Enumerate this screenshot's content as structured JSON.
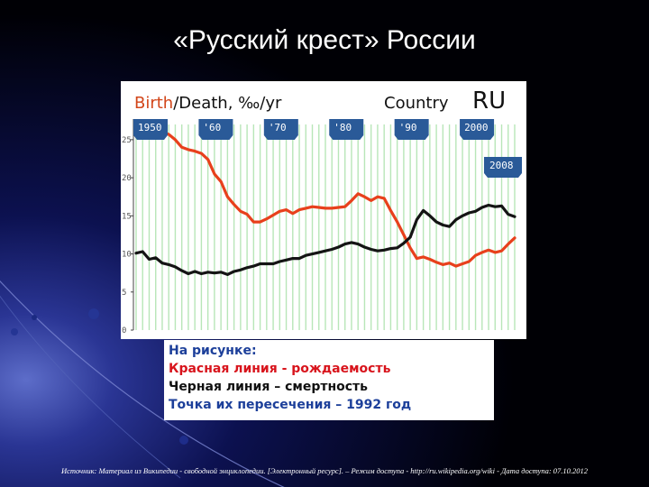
{
  "slide": {
    "title": "«Русский крест» России",
    "source": "Источник: Материал из Википедии - свободной энциклопедии. [Электронный ресурс]. – Режим доступа - http://ru.wikipedia.org/wiki - Дата доступа: 07.10.2012"
  },
  "note": {
    "heading": "На рисунке:",
    "line_red": "Красная линия - рождаемость",
    "line_black": "Черная линия – смертность",
    "line_point": "Точка их пересечения – 1992 год"
  },
  "colors": {
    "birth": "#e8401c",
    "death": "#141414",
    "grid": "#b8e6b8",
    "marker": "#2a5a98",
    "title_birth": "#d2461a",
    "note_blue": "#1c3f9a",
    "note_red": "#d8141c"
  },
  "chart_data": {
    "type": "line",
    "title": {
      "birth": "Birth",
      "sep": "/Death, ‰/yr",
      "country_label": "Country",
      "country_code": "RU"
    },
    "xlim": [
      1950,
      2008
    ],
    "ylim": [
      0,
      27
    ],
    "yticks": [
      0,
      5,
      10,
      15,
      20,
      25
    ],
    "year_markers": [
      {
        "year": 1950,
        "label": "1950"
      },
      {
        "year": 1960,
        "label": "'60"
      },
      {
        "year": 1970,
        "label": "'70"
      },
      {
        "year": 1980,
        "label": "'80"
      },
      {
        "year": 1990,
        "label": "'90"
      },
      {
        "year": 2000,
        "label": "2000"
      }
    ],
    "end_marker": {
      "year": 2008,
      "label": "2008"
    },
    "grid": true,
    "series": [
      {
        "key": "birth",
        "x": [
          1950,
          1951,
          1952,
          1953,
          1954,
          1955,
          1956,
          1957,
          1958,
          1959,
          1960,
          1961,
          1962,
          1963,
          1964,
          1965,
          1966,
          1967,
          1968,
          1969,
          1970,
          1971,
          1972,
          1973,
          1974,
          1975,
          1976,
          1977,
          1978,
          1979,
          1980,
          1981,
          1982,
          1983,
          1984,
          1985,
          1986,
          1987,
          1988,
          1989,
          1990,
          1991,
          1992,
          1993,
          1994,
          1995,
          1996,
          1997,
          1998,
          1999,
          2000,
          2001,
          2002,
          2003,
          2004,
          2005,
          2006,
          2007,
          2008
        ],
        "values": [
          26.9,
          26.5,
          25.5,
          27.1,
          26.0,
          25.7,
          25.0,
          24.0,
          23.7,
          23.5,
          23.2,
          22.4,
          20.5,
          19.5,
          17.5,
          16.5,
          15.6,
          15.2,
          14.2,
          14.2,
          14.6,
          15.1,
          15.6,
          15.8,
          15.3,
          15.8,
          16.0,
          16.2,
          16.1,
          16.0,
          16.0,
          16.1,
          16.2,
          17.0,
          17.9,
          17.5,
          17.0,
          17.5,
          17.3,
          15.7,
          14.2,
          12.5,
          10.8,
          9.4,
          9.6,
          9.3,
          8.9,
          8.6,
          8.8,
          8.4,
          8.7,
          9.0,
          9.8,
          10.2,
          10.5,
          10.2,
          10.4,
          11.3,
          12.1
        ]
      },
      {
        "key": "death",
        "x": [
          1950,
          1951,
          1952,
          1953,
          1954,
          1955,
          1956,
          1957,
          1958,
          1959,
          1960,
          1961,
          1962,
          1963,
          1964,
          1965,
          1966,
          1967,
          1968,
          1969,
          1970,
          1971,
          1972,
          1973,
          1974,
          1975,
          1976,
          1977,
          1978,
          1979,
          1980,
          1981,
          1982,
          1983,
          1984,
          1985,
          1986,
          1987,
          1988,
          1989,
          1990,
          1991,
          1992,
          1993,
          1994,
          1995,
          1996,
          1997,
          1998,
          1999,
          2000,
          2001,
          2002,
          2003,
          2004,
          2005,
          2006,
          2007,
          2008
        ],
        "values": [
          10.1,
          10.3,
          9.3,
          9.5,
          8.8,
          8.6,
          8.3,
          7.8,
          7.4,
          7.7,
          7.4,
          7.6,
          7.5,
          7.6,
          7.3,
          7.7,
          7.9,
          8.2,
          8.4,
          8.7,
          8.7,
          8.7,
          9.0,
          9.2,
          9.4,
          9.4,
          9.8,
          10.0,
          10.2,
          10.4,
          10.6,
          10.9,
          11.3,
          11.5,
          11.3,
          10.9,
          10.6,
          10.4,
          10.5,
          10.7,
          10.8,
          11.4,
          12.2,
          14.5,
          15.7,
          15.0,
          14.2,
          13.8,
          13.6,
          14.5,
          15.0,
          15.4,
          15.6,
          16.1,
          16.4,
          16.2,
          16.3,
          15.2,
          14.9
        ]
      }
    ]
  }
}
